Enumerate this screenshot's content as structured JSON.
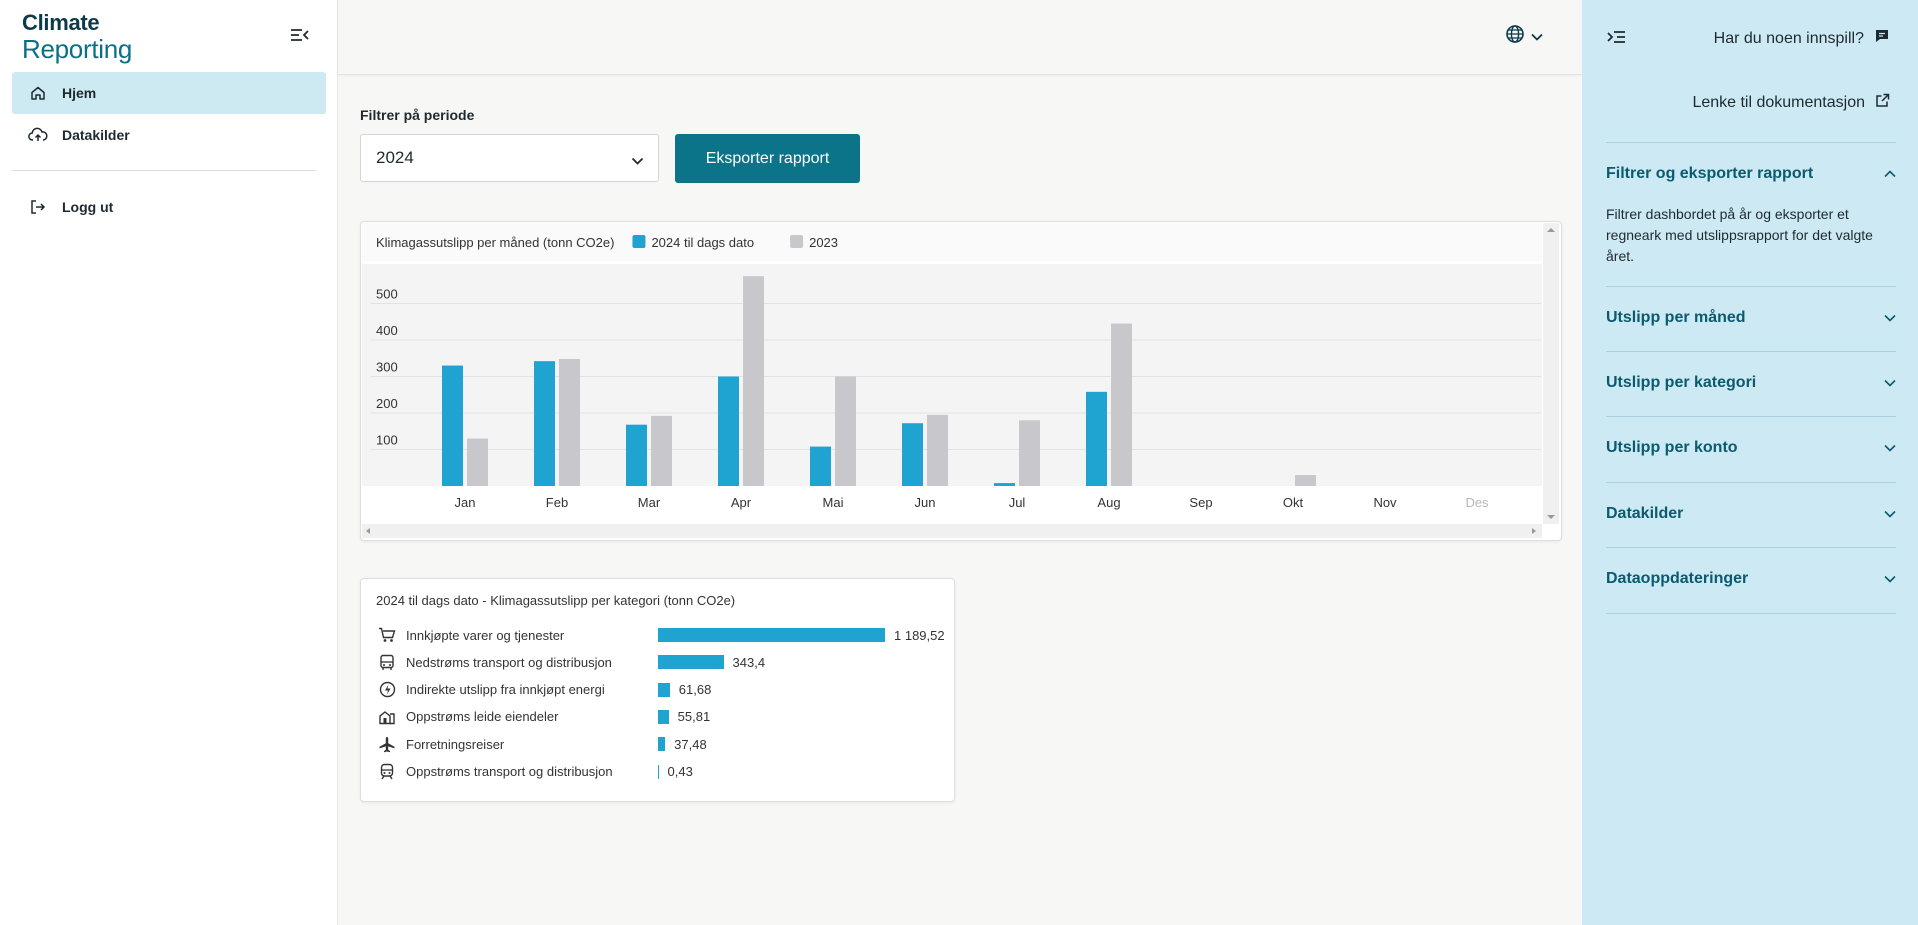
{
  "app": {
    "logo_line1": "Climate",
    "logo_line2": "Reporting"
  },
  "sidebar": {
    "items": [
      {
        "label": "Hjem",
        "icon": "home-icon",
        "active": true
      },
      {
        "label": "Datakilder",
        "icon": "cloud-upload-icon",
        "active": false
      }
    ],
    "logout_label": "Logg ut"
  },
  "filter": {
    "label": "Filtrer på periode",
    "selected": "2024",
    "export_label": "Eksporter rapport"
  },
  "monthly_chart": {
    "chart_data": {
      "type": "bar",
      "title": "Klimagassutslipp per måned (tonn CO2e)",
      "categories": [
        "Jan",
        "Feb",
        "Mar",
        "Apr",
        "Mai",
        "Jun",
        "Jul",
        "Aug",
        "Sep",
        "Okt",
        "Nov",
        "Des"
      ],
      "series": [
        {
          "name": "2024 til dags dato",
          "color": "#1fa3d1",
          "values": [
            330,
            342,
            168,
            300,
            108,
            172,
            8,
            258,
            0,
            0,
            0,
            0
          ]
        },
        {
          "name": "2023",
          "color": "#c8c8cc",
          "values": [
            130,
            348,
            192,
            575,
            300,
            195,
            180,
            445,
            0,
            30,
            0,
            0
          ]
        }
      ],
      "yticks": [
        100,
        200,
        300,
        400,
        500
      ],
      "ylim": [
        0,
        600
      ],
      "grid": true,
      "legend": "top-left"
    }
  },
  "category_chart": {
    "chart_data": {
      "type": "bar",
      "orientation": "horizontal",
      "title": "2024 til dags dato - Klimagassutslipp per kategori (tonn CO2e)",
      "categories": [
        {
          "label": "Innkjøpte varer og tjenester",
          "icon": "cart-icon",
          "value": 1189.52,
          "value_label": "1 189,52"
        },
        {
          "label": "Nedstrøms transport og distribusjon",
          "icon": "bus-icon",
          "value": 343.4,
          "value_label": "343,4"
        },
        {
          "label": "Indirekte utslipp fra innkjøpt energi",
          "icon": "energy-icon",
          "value": 61.68,
          "value_label": "61,68"
        },
        {
          "label": "Oppstrøms leide eiendeler",
          "icon": "building-icon",
          "value": 55.81,
          "value_label": "55,81"
        },
        {
          "label": "Forretningsreiser",
          "icon": "airplane-icon",
          "value": 37.48,
          "value_label": "37,48"
        },
        {
          "label": "Oppstrøms transport og distribusjon",
          "icon": "train-icon",
          "value": 0.43,
          "value_label": "0,43"
        }
      ],
      "color": "#1fa3d1"
    }
  },
  "right_panel": {
    "feedback_label": "Har du noen innspill?",
    "doc_link_label": "Lenke til dokumentasjon",
    "accordion": [
      {
        "title": "Filtrer og eksporter rapport",
        "expanded": true,
        "body": "Filtrer dashbordet på år og eksporter et regneark med utslippsrapport for det valgte året."
      },
      {
        "title": "Utslipp per måned",
        "expanded": false
      },
      {
        "title": "Utslipp per kategori",
        "expanded": false
      },
      {
        "title": "Utslipp per konto",
        "expanded": false
      },
      {
        "title": "Datakilder",
        "expanded": false
      },
      {
        "title": "Dataoppdateringer",
        "expanded": false
      }
    ]
  }
}
